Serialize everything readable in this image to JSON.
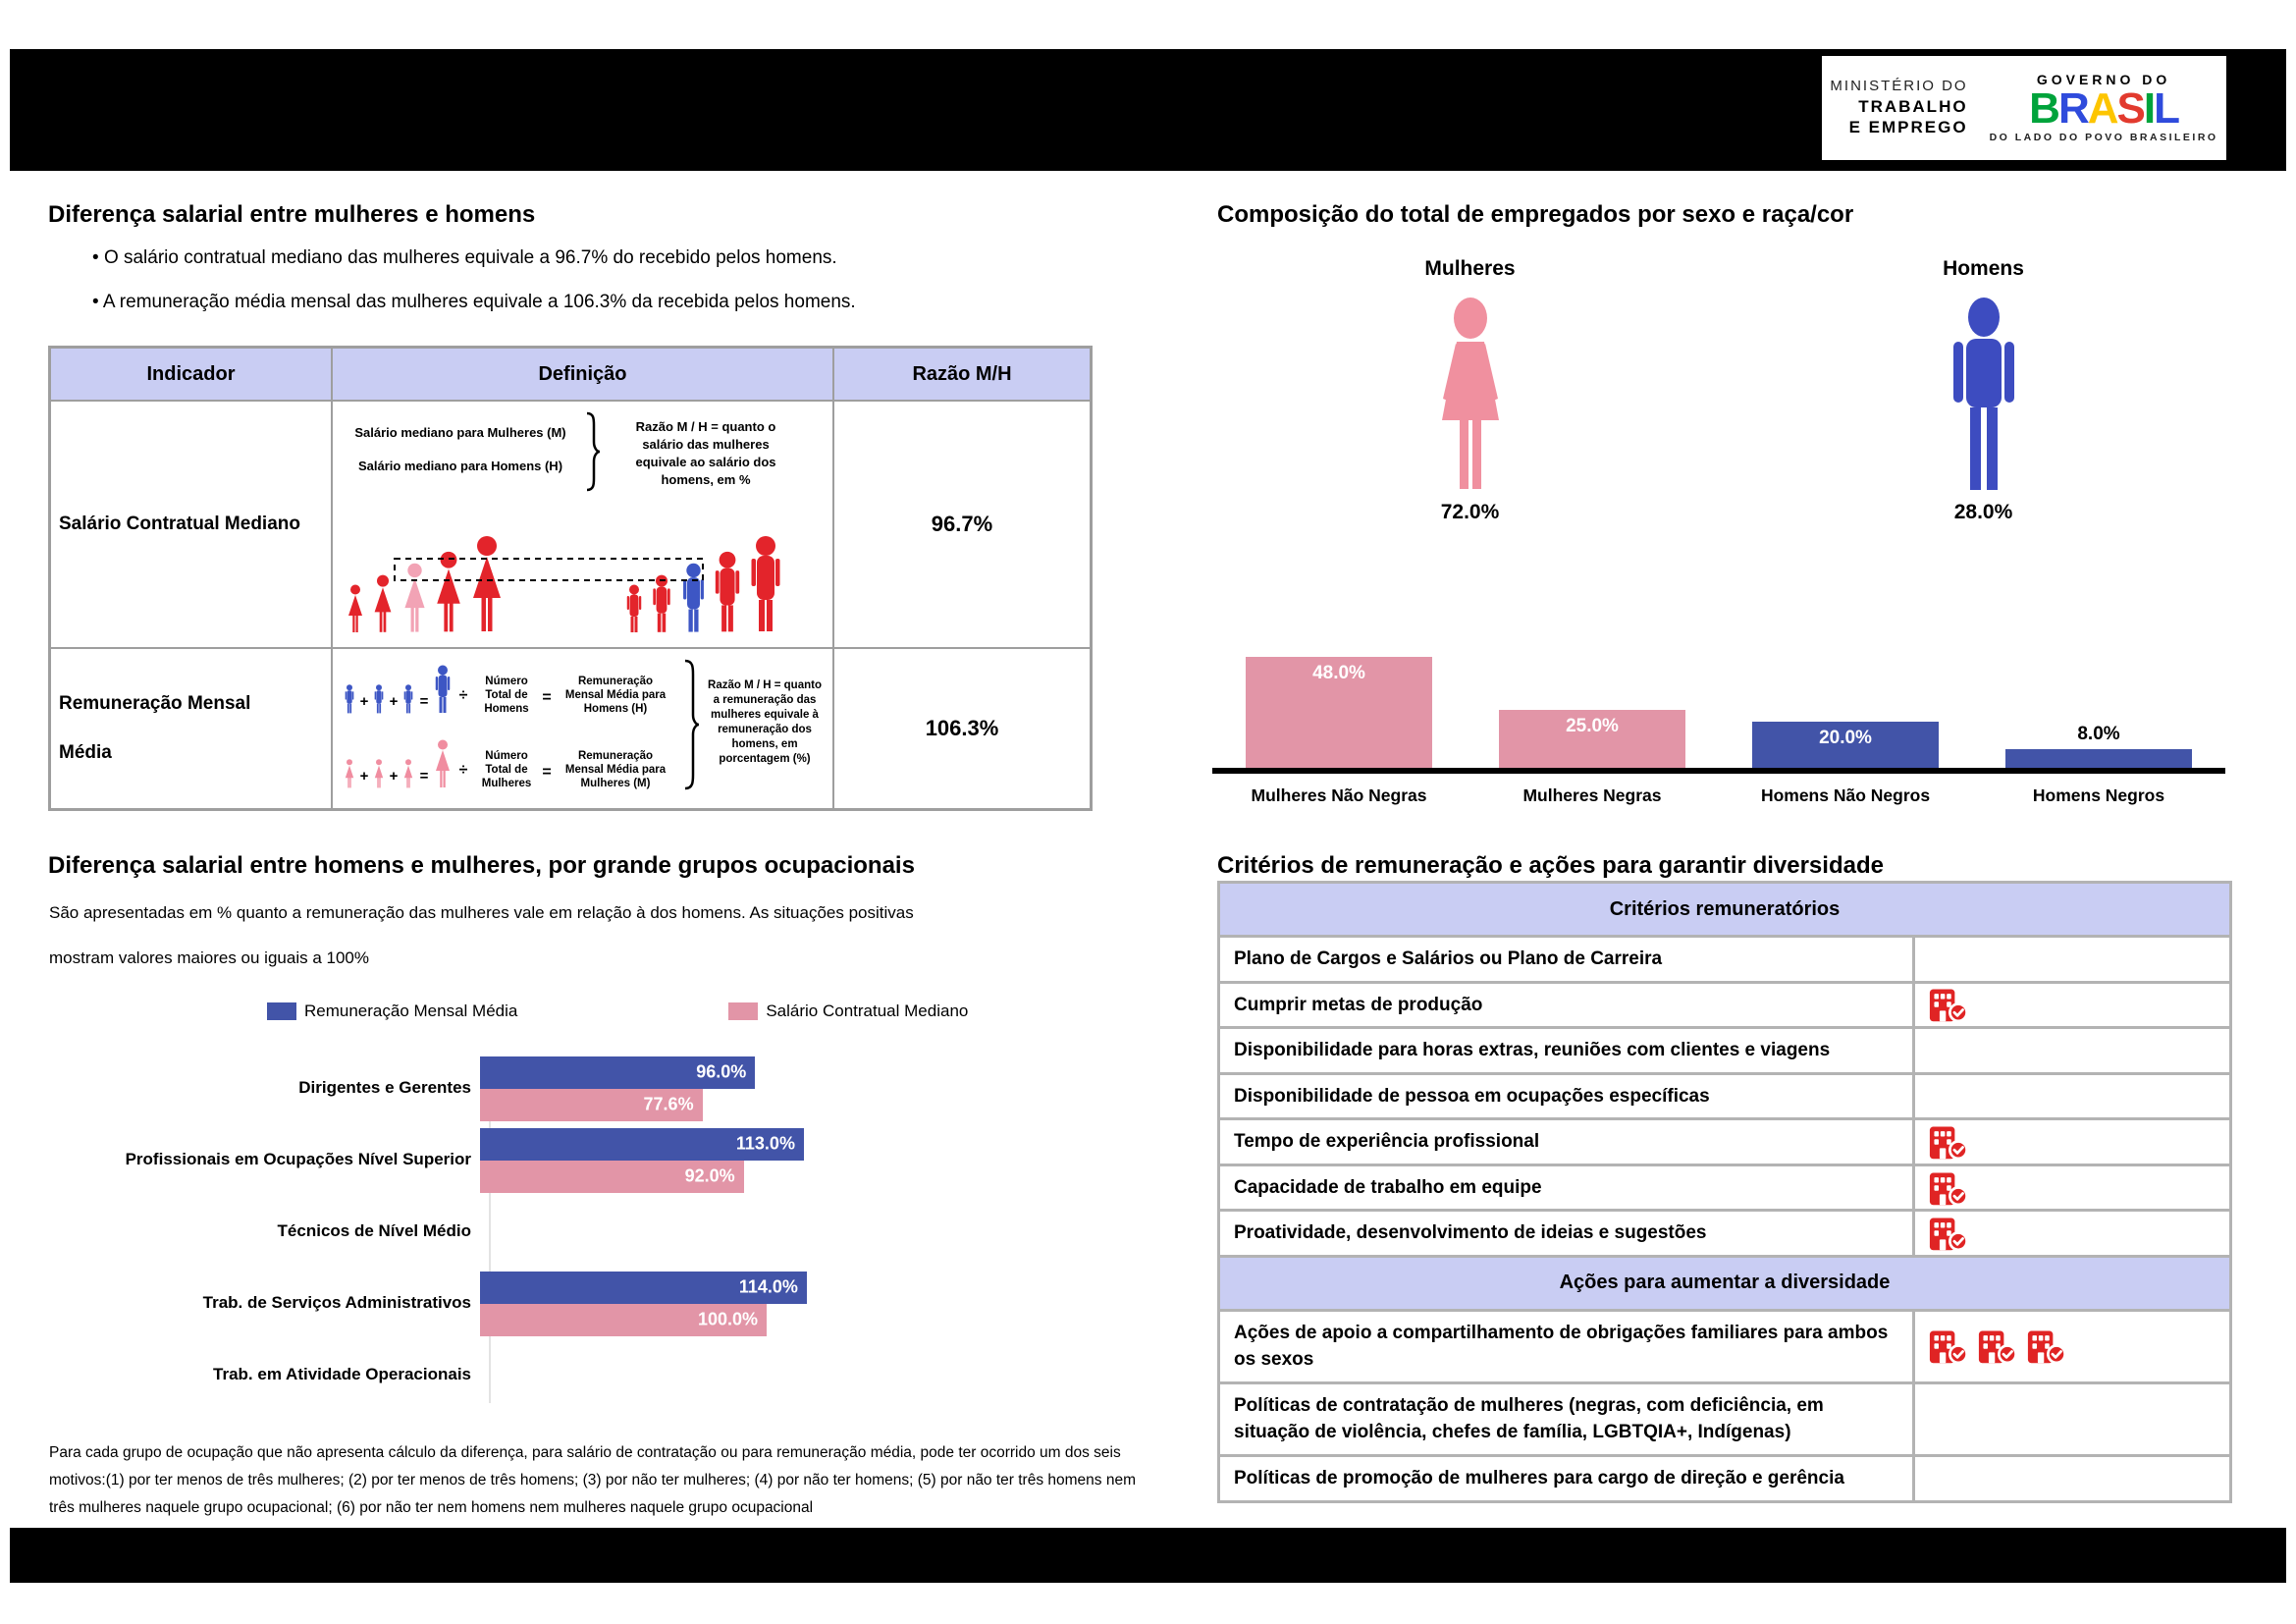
{
  "header": {
    "ministry_lines": [
      "MINISTÉRIO DO",
      "TRABALHO",
      "E EMPREGO"
    ],
    "gov_top": "GOVERNO DO",
    "gov_letters": [
      "B",
      "R",
      "A",
      "S",
      "I",
      "L"
    ],
    "gov_tagline": "DO LADO DO POVO BRASILEIRO"
  },
  "symbols": {
    "plus": "+",
    "equals": "=",
    "divide": "÷"
  },
  "salary_diff": {
    "title": "Diferença salarial entre mulheres e homens",
    "bullets": [
      "O salário contratual mediano das mulheres equivale a 96.7% do recebido pelos homens.",
      "A remuneração média mensal das mulheres equivale a 106.3% da recebida pelos homens."
    ],
    "table": {
      "headers": [
        "Indicador",
        "Definição",
        "Razão M/H"
      ],
      "rows": [
        {
          "indicator_lines": [
            "Salário Contratual Mediano"
          ],
          "ratio": "96.7%",
          "diagram": {
            "line1": "Salário mediano para Mulheres (M)",
            "line2": "Salário mediano para Homens (H)",
            "note_lines": [
              "Razão M / H = quanto o",
              "salário das mulheres",
              "equivale ao salário dos",
              "homens, em %"
            ]
          }
        },
        {
          "indicator_lines": [
            "Remuneração Mensal",
            "Média"
          ],
          "ratio": "106.3%",
          "diagram": {
            "men_count_lines": [
              "Número",
              "Total de",
              "Homens"
            ],
            "men_result_lines": [
              "Remuneração",
              "Mensal Média para",
              "Homens (H)"
            ],
            "women_count_lines": [
              "Número",
              "Total de",
              "Mulheres"
            ],
            "women_result_lines": [
              "Remuneração",
              "Mensal Média para",
              "Mulheres (M)"
            ],
            "note_lines": [
              "Razão M / H = quanto",
              "a remuneração das",
              "mulheres equivale à",
              "remuneração dos",
              "homens, em",
              "porcentagem (%)"
            ]
          }
        }
      ]
    }
  },
  "composition": {
    "title": "Composição do total de empregados por sexo e raça/cor",
    "female": {
      "label": "Mulheres",
      "value": "72.0%"
    },
    "male": {
      "label": "Homens",
      "value": "28.0%"
    },
    "bars": [
      {
        "label": "Mulheres Não Negras",
        "value": 48.0,
        "value_label": "48.0%",
        "color": "#e295a7"
      },
      {
        "label": "Mulheres Negras",
        "value": 25.0,
        "value_label": "25.0%",
        "color": "#e295a7"
      },
      {
        "label": "Homens Não Negros",
        "value": 20.0,
        "value_label": "20.0%",
        "color": "#4254a8"
      },
      {
        "label": "Homens Negros",
        "value": 8.0,
        "value_label": "8.0%",
        "color": "#4254a8"
      }
    ]
  },
  "occupational": {
    "title": "Diferença salarial entre homens e mulheres, por grande grupos ocupacionais",
    "subtitle_lines": [
      "São apresentadas em % quanto a remuneração das mulheres vale em relação à dos homens. As situações positivas",
      "mostram valores maiores ou iguais a 100%"
    ],
    "legend": [
      {
        "label": "Remuneração Mensal Média",
        "color": "#4254a8"
      },
      {
        "label": "Salário Contratual Mediano",
        "color": "#e295a7"
      }
    ],
    "groups": [
      {
        "label": "Dirigentes e Gerentes",
        "media": 96.0,
        "media_label": "96.0%",
        "mediano": 77.6,
        "mediano_label": "77.6%"
      },
      {
        "label": "Profissionais em Ocupações Nível Superior",
        "media": 113.0,
        "media_label": "113.0%",
        "mediano": 92.0,
        "mediano_label": "92.0%"
      },
      {
        "label": "Técnicos de Nível Médio",
        "media": null,
        "media_label": "",
        "mediano": null,
        "mediano_label": ""
      },
      {
        "label": "Trab. de Serviços Administrativos",
        "media": 114.0,
        "media_label": "114.0%",
        "mediano": 100.0,
        "mediano_label": "100.0%"
      },
      {
        "label": "Trab. em Atividade Operacionais",
        "media": null,
        "media_label": "",
        "mediano": null,
        "mediano_label": ""
      }
    ],
    "footnote": "Para cada grupo de ocupação que não apresenta cálculo da diferença, para salário de contratação ou para remuneração média, pode ter ocorrido um dos seis motivos:(1) por ter menos de três mulheres; (2) por ter menos de três homens; (3) por não ter mulheres; (4) por não ter homens; (5) por não ter três homens nem três mulheres naquele grupo ocupacional; (6) por não ter nem homens nem mulheres naquele grupo ocupacional"
  },
  "criteria": {
    "title": "Critérios de remuneração e ações para garantir diversidade",
    "remuneration": {
      "header": "Critérios remuneratórios",
      "rows": [
        {
          "label": "Plano de Cargos e Salários ou Plano de Carreira",
          "checks": 0
        },
        {
          "label": "Cumprir metas de produção",
          "checks": 1
        },
        {
          "label": "Disponibilidade para horas extras, reuniões com clientes e viagens",
          "checks": 0
        },
        {
          "label": "Disponibilidade de pessoa em ocupações específicas",
          "checks": 0
        },
        {
          "label": "Tempo de experiência profissional",
          "checks": 1
        },
        {
          "label": "Capacidade de trabalho em equipe",
          "checks": 1
        },
        {
          "label": "Proatividade, desenvolvimento de ideias e sugestões",
          "checks": 1
        }
      ]
    },
    "actions": {
      "header": "Ações para aumentar a diversidade",
      "rows": [
        {
          "label": "Ações de apoio a compartilhamento de obrigações familiares para ambos os sexos",
          "checks": 3
        },
        {
          "label": "Políticas de contratação de mulheres (negras, com deficiência, em situação de violência, chefes de família, LGBTQIA+, Indígenas)",
          "checks": 0
        },
        {
          "label": "Políticas de promoção de mulheres para cargo de direção e gerência",
          "checks": 0
        }
      ]
    }
  },
  "chart_data": [
    {
      "type": "bar",
      "title": "Composição do total de empregados por sexo e raça/cor",
      "categories": [
        "Mulheres Não Negras",
        "Mulheres Negras",
        "Homens Não Negros",
        "Homens Negros"
      ],
      "values": [
        48.0,
        25.0,
        20.0,
        8.0
      ],
      "unit": "%",
      "totals": {
        "Mulheres": 72.0,
        "Homens": 28.0
      },
      "legend_position": "none",
      "grid": false
    },
    {
      "type": "bar",
      "orientation": "horizontal",
      "title": "Diferença salarial entre homens e mulheres, por grande grupos ocupacionais",
      "categories": [
        "Dirigentes e Gerentes",
        "Profissionais em Ocupações Nível Superior",
        "Técnicos de Nível Médio",
        "Trab. de Serviços Administrativos",
        "Trab. em Atividade Operacionais"
      ],
      "series": [
        {
          "name": "Remuneração Mensal Média",
          "values": [
            96.0,
            113.0,
            null,
            114.0,
            null
          ]
        },
        {
          "name": "Salário Contratual Mediano",
          "values": [
            77.6,
            92.0,
            null,
            100.0,
            null
          ]
        }
      ],
      "unit": "%",
      "legend_position": "top",
      "grid": false
    }
  ]
}
